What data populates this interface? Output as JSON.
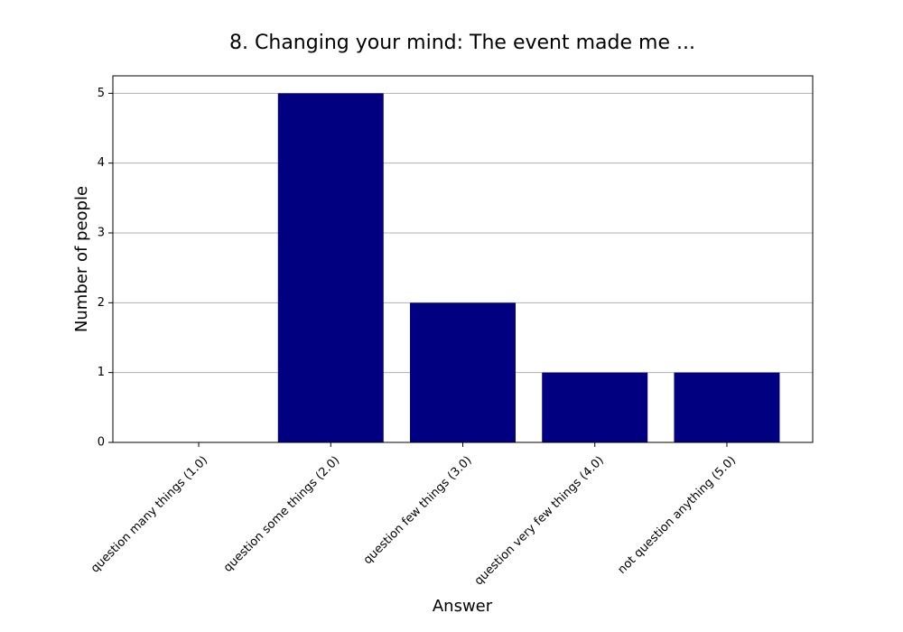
{
  "chart_data": {
    "type": "bar",
    "title": "8. Changing your mind: The event made me ...",
    "x_label": "Answer",
    "y_label": "Number of people",
    "categories": [
      "question many things (1.0)",
      "question some things (2.0)",
      "question few things (3.0)",
      "question very few things (4.0)",
      "not question anything (5.0)"
    ],
    "values": [
      0,
      5,
      2,
      1,
      1
    ],
    "color": "#000080",
    "ylim": [
      0,
      5.25
    ],
    "yticks": [
      0,
      1,
      2,
      3,
      4,
      5
    ],
    "grid": true
  }
}
